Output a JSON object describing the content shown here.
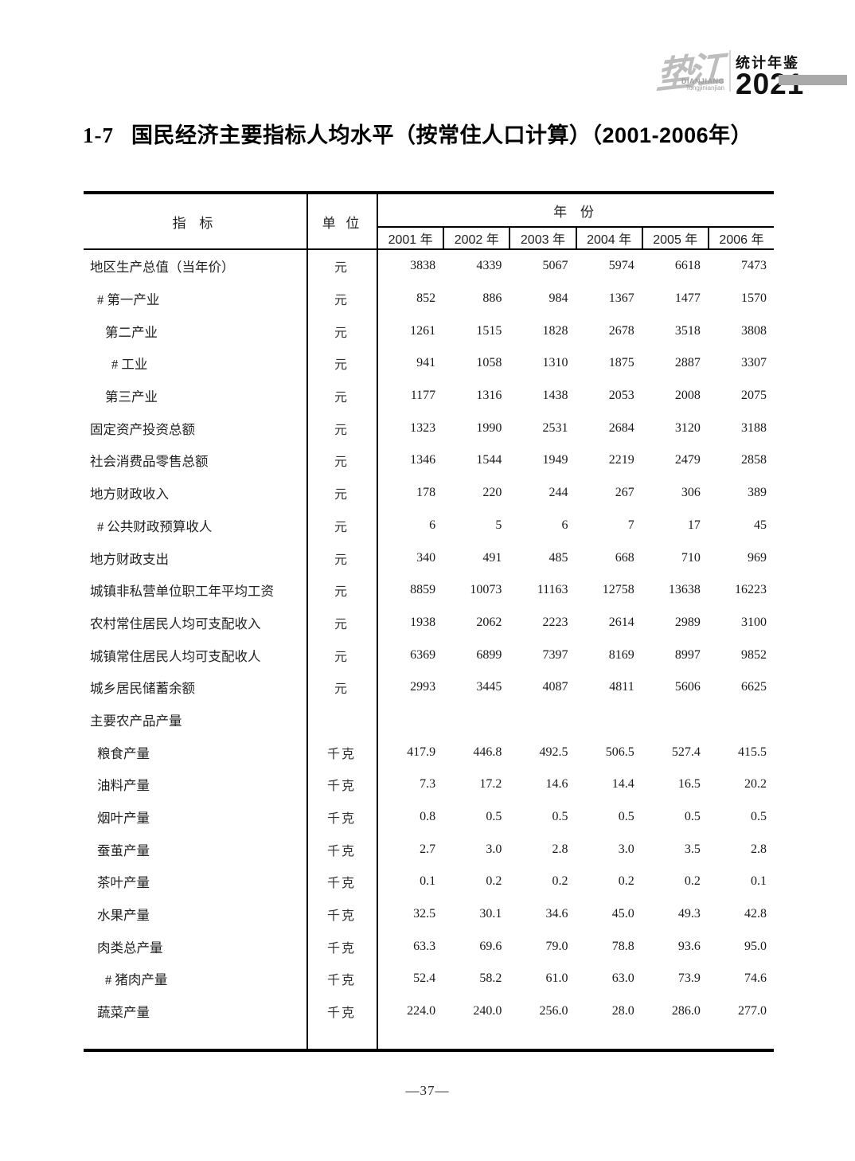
{
  "logo": {
    "calligraphy": "垫江",
    "roman_line1": "DIANJIANG",
    "roman_line2": "Tongjinianjian",
    "yearbook_label": "统计年鉴",
    "year": "2021",
    "bar_color": "#a9a9a9"
  },
  "title": {
    "number": "1-7",
    "text": "国民经济主要指标人均水平（按常住人口计算）（2001-2006年）"
  },
  "table": {
    "header": {
      "indicator": "指 标",
      "unit": "单 位",
      "year_group": "年 份",
      "years": [
        "2001 年",
        "2002 年",
        "2003 年",
        "2004 年",
        "2005 年",
        "2006 年"
      ]
    },
    "rows": [
      {
        "label": "地区生产总值（当年价）",
        "indent": 0,
        "unit": "元",
        "values": [
          "3838",
          "4339",
          "5067",
          "5974",
          "6618",
          "7473"
        ]
      },
      {
        "label": "# 第一产业",
        "indent": 1,
        "unit": "元",
        "values": [
          "852",
          "886",
          "984",
          "1367",
          "1477",
          "1570"
        ]
      },
      {
        "label": "第二产业",
        "indent": 2,
        "unit": "元",
        "values": [
          "1261",
          "1515",
          "1828",
          "2678",
          "3518",
          "3808"
        ]
      },
      {
        "label": "# 工业",
        "indent": 3,
        "unit": "元",
        "values": [
          "941",
          "1058",
          "1310",
          "1875",
          "2887",
          "3307"
        ]
      },
      {
        "label": "第三产业",
        "indent": 2,
        "unit": "元",
        "values": [
          "1177",
          "1316",
          "1438",
          "2053",
          "2008",
          "2075"
        ]
      },
      {
        "label": "固定资产投资总额",
        "indent": 0,
        "unit": "元",
        "values": [
          "1323",
          "1990",
          "2531",
          "2684",
          "3120",
          "3188"
        ]
      },
      {
        "label": "社会消费品零售总额",
        "indent": 0,
        "unit": "元",
        "values": [
          "1346",
          "1544",
          "1949",
          "2219",
          "2479",
          "2858"
        ]
      },
      {
        "label": "地方财政收入",
        "indent": 0,
        "unit": "元",
        "values": [
          "178",
          "220",
          "244",
          "267",
          "306",
          "389"
        ]
      },
      {
        "label": "# 公共财政预算收人",
        "indent": 1,
        "unit": "元",
        "values": [
          "6",
          "5",
          "6",
          "7",
          "17",
          "45"
        ]
      },
      {
        "label": "地方财政支出",
        "indent": 0,
        "unit": "元",
        "values": [
          "340",
          "491",
          "485",
          "668",
          "710",
          "969"
        ]
      },
      {
        "label": "城镇非私营单位职工年平均工资",
        "indent": 0,
        "unit": "元",
        "values": [
          "8859",
          "10073",
          "11163",
          "12758",
          "13638",
          "16223"
        ]
      },
      {
        "label": "农村常住居民人均可支配收入",
        "indent": 0,
        "unit": "元",
        "values": [
          "1938",
          "2062",
          "2223",
          "2614",
          "2989",
          "3100"
        ]
      },
      {
        "label": "城镇常住居民人均可支配收人",
        "indent": 0,
        "unit": "元",
        "values": [
          "6369",
          "6899",
          "7397",
          "8169",
          "8997",
          "9852"
        ]
      },
      {
        "label": "城乡居民储蓄余额",
        "indent": 0,
        "unit": "元",
        "values": [
          "2993",
          "3445",
          "4087",
          "4811",
          "5606",
          "6625"
        ]
      },
      {
        "label": "主要农产品产量",
        "indent": 0,
        "unit": "",
        "values": [
          "",
          "",
          "",
          "",
          "",
          ""
        ]
      },
      {
        "label": "粮食产量",
        "indent": 1,
        "unit": "千克",
        "values": [
          "417.9",
          "446.8",
          "492.5",
          "506.5",
          "527.4",
          "415.5"
        ]
      },
      {
        "label": "油料产量",
        "indent": 1,
        "unit": "千克",
        "values": [
          "7.3",
          "17.2",
          "14.6",
          "14.4",
          "16.5",
          "20.2"
        ]
      },
      {
        "label": "烟叶产量",
        "indent": 1,
        "unit": "千克",
        "values": [
          "0.8",
          "0.5",
          "0.5",
          "0.5",
          "0.5",
          "0.5"
        ]
      },
      {
        "label": "蚕茧产量",
        "indent": 1,
        "unit": "千克",
        "values": [
          "2.7",
          "3.0",
          "2.8",
          "3.0",
          "3.5",
          "2.8"
        ]
      },
      {
        "label": "茶叶产量",
        "indent": 1,
        "unit": "千克",
        "values": [
          "0.1",
          "0.2",
          "0.2",
          "0.2",
          "0.2",
          "0.1"
        ]
      },
      {
        "label": "水果产量",
        "indent": 1,
        "unit": "千克",
        "values": [
          "32.5",
          "30.1",
          "34.6",
          "45.0",
          "49.3",
          "42.8"
        ]
      },
      {
        "label": "肉类总产量",
        "indent": 1,
        "unit": "千克",
        "values": [
          "63.3",
          "69.6",
          "79.0",
          "78.8",
          "93.6",
          "95.0"
        ]
      },
      {
        "label": "# 猪肉产量",
        "indent": 2,
        "unit": "千克",
        "values": [
          "52.4",
          "58.2",
          "61.0",
          "63.0",
          "73.9",
          "74.6"
        ]
      },
      {
        "label": "蔬菜产量",
        "indent": 1,
        "unit": "千克",
        "values": [
          "224.0",
          "240.0",
          "256.0",
          "28.0",
          "286.0",
          "277.0"
        ]
      }
    ]
  },
  "footer": {
    "page_number": "—37—"
  }
}
